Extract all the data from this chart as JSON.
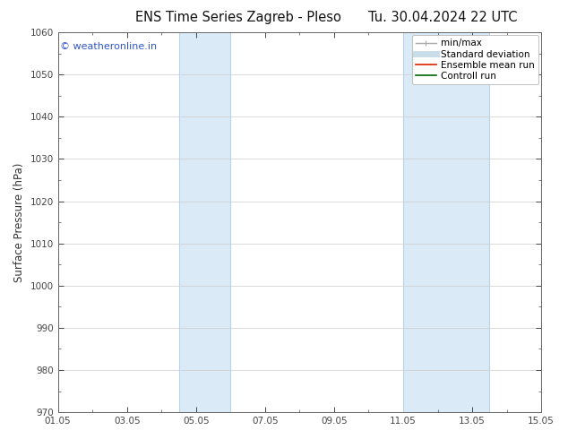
{
  "title_left": "ENS Time Series Zagreb - Pleso",
  "title_right": "Tu. 30.04.2024 22 UTC",
  "ylabel": "Surface Pressure (hPa)",
  "xlabel_ticks": [
    "01.05",
    "03.05",
    "05.05",
    "07.05",
    "09.05",
    "11.05",
    "13.05",
    "15.05"
  ],
  "xlim": [
    0,
    14
  ],
  "ylim": [
    970,
    1060
  ],
  "yticks": [
    970,
    980,
    990,
    1000,
    1010,
    1020,
    1030,
    1040,
    1050,
    1060
  ],
  "xtick_positions": [
    0,
    2,
    4,
    6,
    8,
    10,
    12,
    14
  ],
  "shaded_bands": [
    {
      "xmin": 3.5,
      "xmax": 5.0
    },
    {
      "xmin": 10.0,
      "xmax": 12.5
    }
  ],
  "band_color": "#daeaf7",
  "band_edge_color": "#b8d4ea",
  "watermark_text": "© weatheronline.in",
  "watermark_color": "#3355cc",
  "legend_entries": [
    {
      "label": "min/max",
      "color": "#aaaaaa",
      "lw": 1.0,
      "style": "line_with_caps"
    },
    {
      "label": "Standard deviation",
      "color": "#c8dcea",
      "lw": 5,
      "style": "solid"
    },
    {
      "label": "Ensemble mean run",
      "color": "#dd2200",
      "lw": 1.2,
      "style": "solid"
    },
    {
      "label": "Controll run",
      "color": "#006600",
      "lw": 1.2,
      "style": "solid"
    }
  ],
  "background_color": "#ffffff",
  "grid_color": "#cccccc",
  "title_fontsize": 10.5,
  "tick_fontsize": 7.5,
  "ylabel_fontsize": 8.5,
  "legend_fontsize": 7.5
}
